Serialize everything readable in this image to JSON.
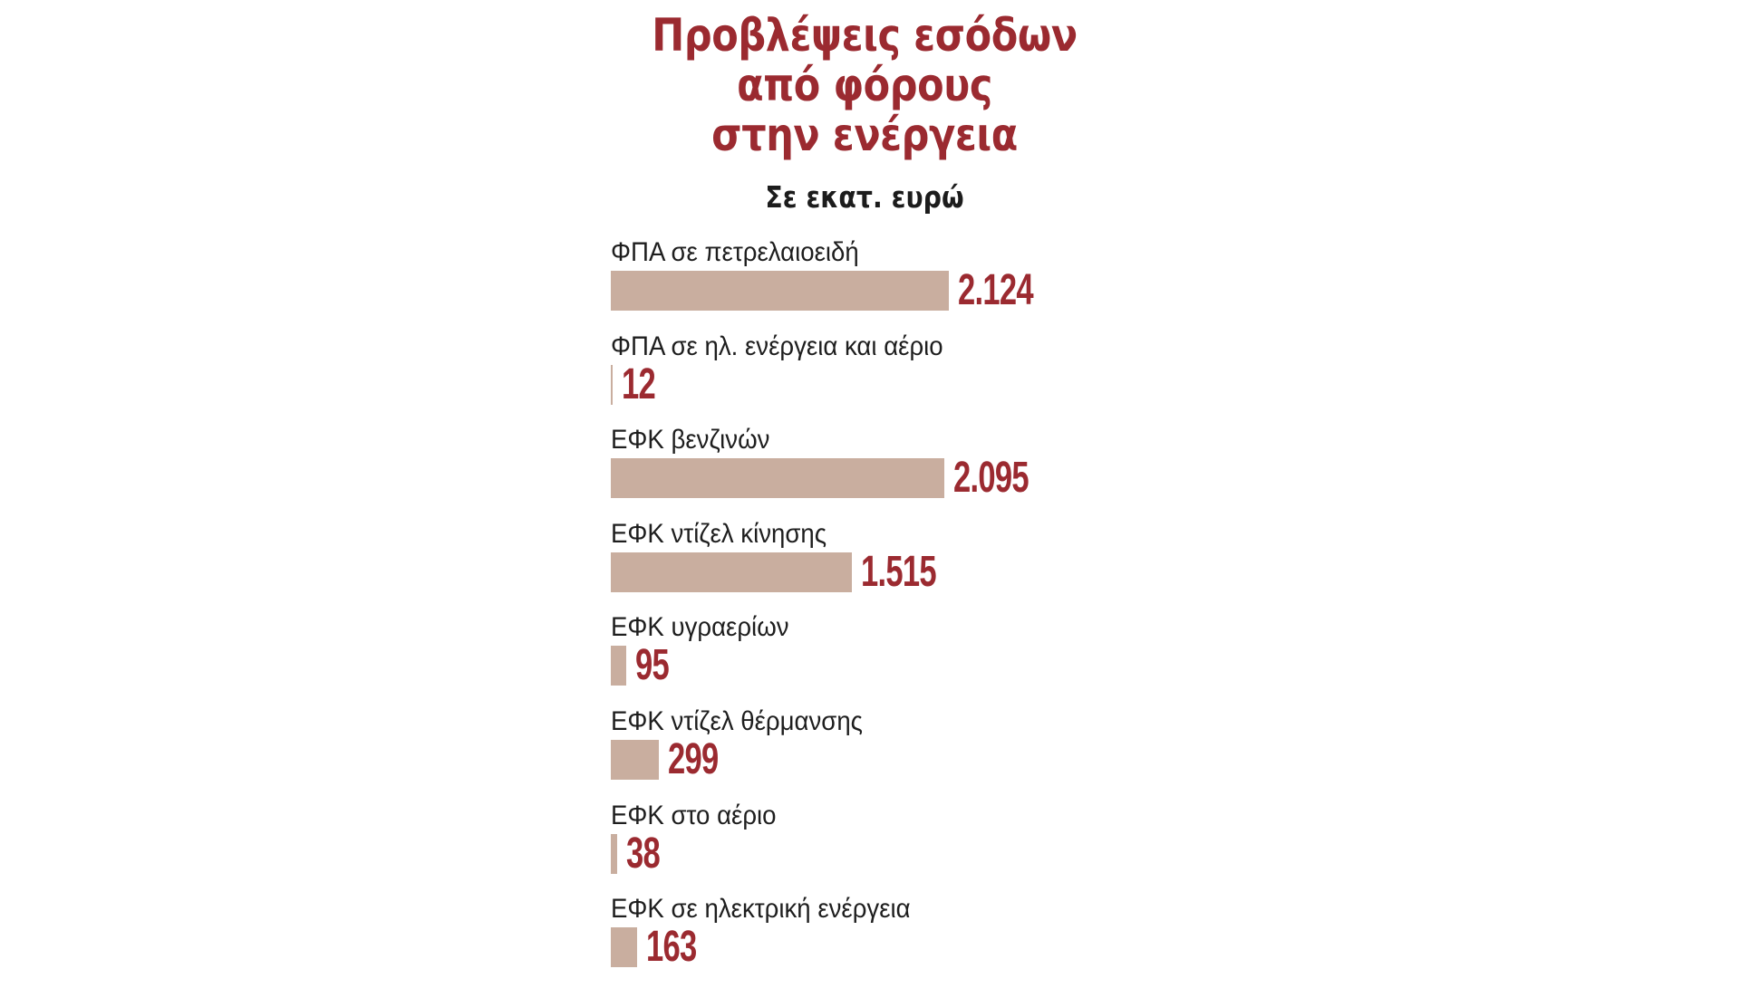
{
  "title": {
    "line1": "Προβλέψεις εσόδων",
    "line2": "από φόρους",
    "line3": "στην ενέργεια"
  },
  "subtitle": "Σε εκατ. ευρώ",
  "colors": {
    "accent": "#9b2a30",
    "bar": "#c9ae9f",
    "label": "#1e1e1e"
  },
  "rows": [
    {
      "label": "ΦΠΑ σε πετρελαιοειδή",
      "value": 2124,
      "display": "2.124"
    },
    {
      "label": "ΦΠΑ σε ηλ. ενέργεια και αέριο",
      "value": 12,
      "display": "12"
    },
    {
      "label": "ΕΦΚ βενζινών",
      "value": 2095,
      "display": "2.095"
    },
    {
      "label": "ΕΦΚ ντίζελ κίνησης",
      "value": 1515,
      "display": "1.515"
    },
    {
      "label": "ΕΦΚ υγραερίων",
      "value": 95,
      "display": "95"
    },
    {
      "label": "ΕΦΚ ντίζελ θέρμανσης",
      "value": 299,
      "display": "299"
    },
    {
      "label": "ΕΦΚ στο αέριο",
      "value": 38,
      "display": "38"
    },
    {
      "label": "ΕΦΚ σε ηλεκτρική ενέργεια",
      "value": 163,
      "display": "163"
    }
  ],
  "chart_data": {
    "type": "bar",
    "orientation": "horizontal",
    "title": "Προβλέψεις εσόδων από φόρους στην ενέργεια",
    "subtitle": "Σε εκατ. ευρώ",
    "categories": [
      "ΦΠΑ σε πετρελαιοειδή",
      "ΦΠΑ σε ηλ. ενέργεια και αέριο",
      "ΕΦΚ βενζινών",
      "ΕΦΚ ντίζελ κίνησης",
      "ΕΦΚ υγραερίων",
      "ΕΦΚ ντίζελ θέρμανσης",
      "ΕΦΚ στο αέριο",
      "ΕΦΚ σε ηλεκτρική ενέργεια"
    ],
    "values": [
      2124,
      12,
      2095,
      1515,
      95,
      299,
      38,
      163
    ],
    "data_labels": [
      "2.124",
      "12",
      "2.095",
      "1.515",
      "95",
      "299",
      "38",
      "163"
    ],
    "xlabel": "",
    "ylabel": "",
    "unit": "εκατ. ευρώ",
    "grid": false,
    "legend": null
  }
}
